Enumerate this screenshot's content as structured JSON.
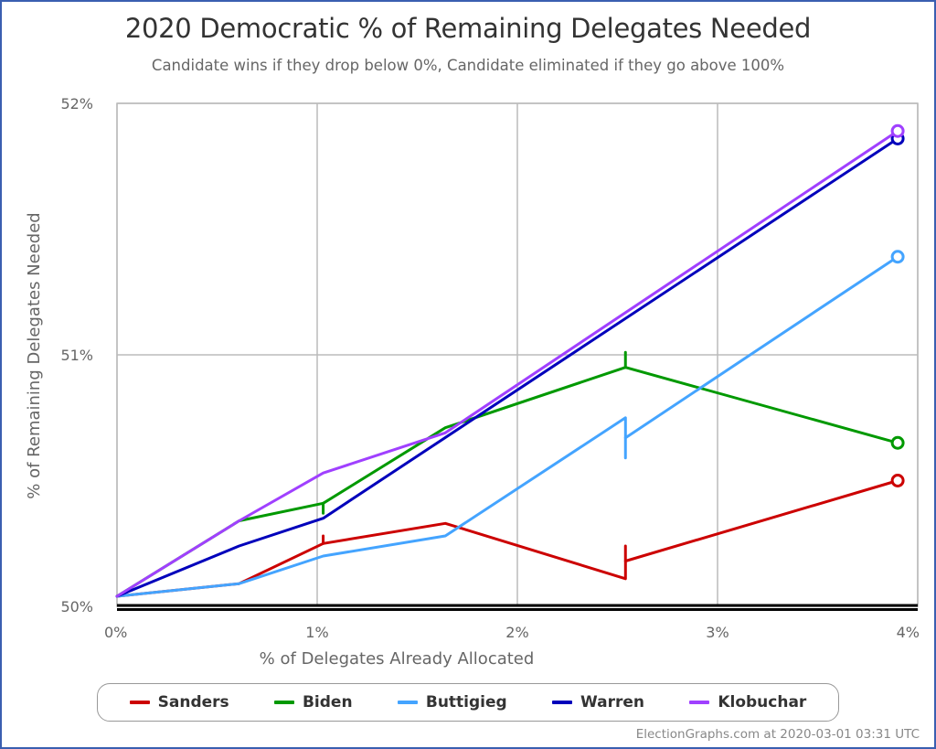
{
  "header": {
    "title": "2020 Democratic % of Remaining Delegates Needed",
    "subtitle": "Candidate wins if they drop below 0%, Candidate eliminated if they go above 100%"
  },
  "credit": "ElectionGraphs.com at 2020-03-01 03:31 UTC",
  "axes": {
    "x_title": "% of Delegates Already Allocated",
    "y_title": "% of Remaining Delegates Needed",
    "x_ticks": [
      "0%",
      "1%",
      "2%",
      "3%",
      "4%"
    ],
    "y_ticks": [
      "50%",
      "51%",
      "52%"
    ]
  },
  "legend": [
    {
      "name": "Sanders",
      "color": "#cc0000"
    },
    {
      "name": "Biden",
      "color": "#009900"
    },
    {
      "name": "Buttigieg",
      "color": "#44a4ff"
    },
    {
      "name": "Warren",
      "color": "#0000bb"
    },
    {
      "name": "Klobuchar",
      "color": "#a040ff"
    }
  ],
  "chart_data": {
    "type": "line",
    "title": "2020 Democratic % of Remaining Delegates Needed",
    "subtitle": "Candidate wins if they drop below 0%, Candidate eliminated if they go above 100%",
    "xlabel": "% of Delegates Already Allocated",
    "ylabel": "% of Remaining Delegates Needed",
    "xlim": [
      0,
      4
    ],
    "ylim": [
      50,
      52
    ],
    "x_tick_labels": [
      "0%",
      "1%",
      "2%",
      "3%",
      "4%"
    ],
    "y_tick_labels": [
      "50%",
      "51%",
      "52%"
    ],
    "grid": true,
    "legend_position": "bottom",
    "reference_line": {
      "y": 50,
      "style": "thick black double"
    },
    "series": [
      {
        "name": "Sanders",
        "color": "#cc0000",
        "points": [
          [
            0,
            50.04
          ],
          [
            0.61,
            50.09
          ],
          [
            1.03,
            50.25
          ],
          [
            1.64,
            50.33
          ],
          [
            2.54,
            50.11
          ],
          [
            2.54,
            50.18
          ],
          [
            3.9,
            50.5
          ]
        ],
        "ticks": [
          [
            1.03,
            50.28
          ],
          [
            2.54,
            50.24
          ]
        ]
      },
      {
        "name": "Biden",
        "color": "#009900",
        "points": [
          [
            0,
            50.04
          ],
          [
            0.61,
            50.34
          ],
          [
            1.03,
            50.41
          ],
          [
            1.64,
            50.71
          ],
          [
            2.54,
            50.95
          ],
          [
            3.9,
            50.65
          ]
        ],
        "ticks": [
          [
            1.03,
            50.37
          ],
          [
            2.54,
            51.01
          ]
        ]
      },
      {
        "name": "Buttigieg",
        "color": "#44a4ff",
        "points": [
          [
            0,
            50.04
          ],
          [
            0.61,
            50.09
          ],
          [
            1.03,
            50.2
          ],
          [
            1.64,
            50.28
          ],
          [
            2.54,
            50.75
          ],
          [
            2.54,
            50.67
          ],
          [
            3.9,
            51.39
          ]
        ],
        "ticks": [
          [
            2.54,
            50.59
          ]
        ]
      },
      {
        "name": "Warren",
        "color": "#0000bb",
        "points": [
          [
            0,
            50.04
          ],
          [
            0.61,
            50.24
          ],
          [
            1.03,
            50.35
          ],
          [
            3.9,
            51.86
          ]
        ],
        "ticks": []
      },
      {
        "name": "Klobuchar",
        "color": "#a040ff",
        "points": [
          [
            0,
            50.04
          ],
          [
            0.61,
            50.34
          ],
          [
            1.03,
            50.53
          ],
          [
            1.64,
            50.69
          ],
          [
            3.9,
            51.89
          ]
        ],
        "ticks": []
      }
    ]
  }
}
